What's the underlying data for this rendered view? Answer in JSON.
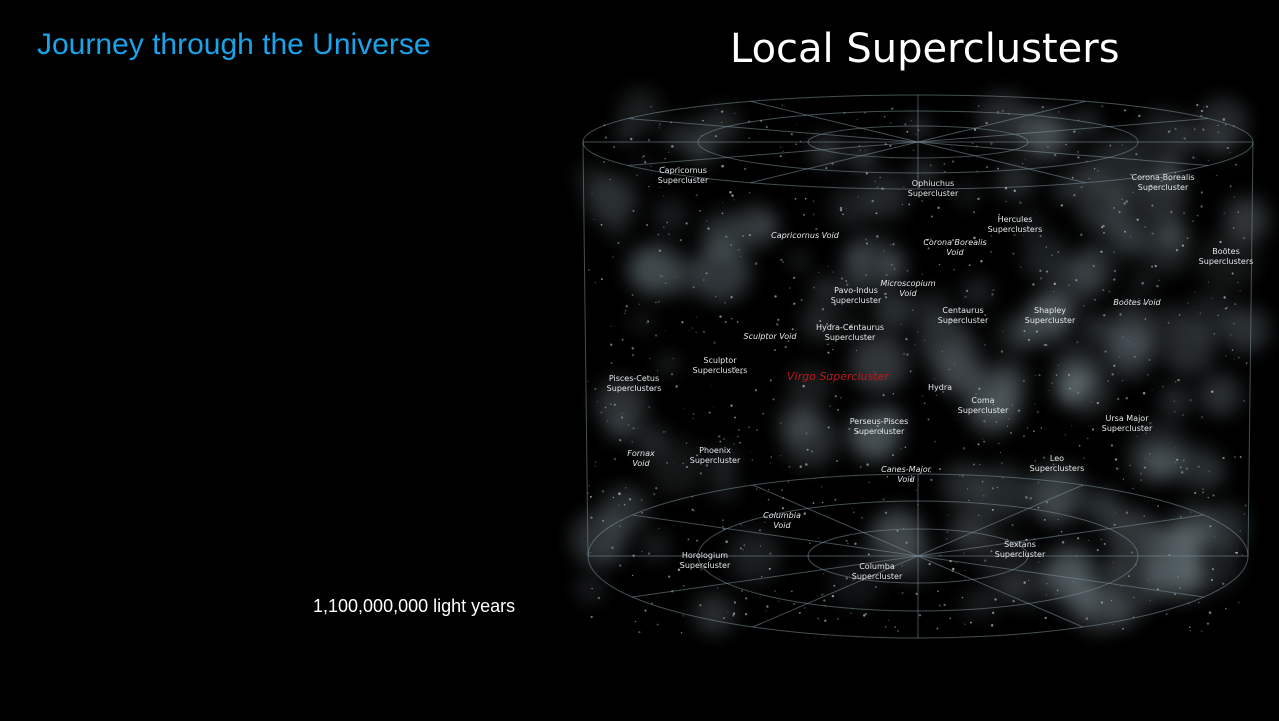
{
  "header": {
    "title": "Journey through the Universe"
  },
  "image": {
    "heading": "Local Superclusters",
    "labels": [
      [
        "Capricornus",
        "Supercluster"
      ],
      [
        "Ophiuchus",
        "Supercluster"
      ],
      [
        "Corona-Borealis",
        "Supercluster"
      ],
      [
        "Hercules",
        "Superclusters"
      ],
      [
        "Capricornus Void"
      ],
      [
        "Corona Borealis",
        "Void"
      ],
      [
        "Boötes",
        "Superclusters"
      ],
      [
        "Microscopium",
        "Void"
      ],
      [
        "Pavo-Indus",
        "Supercluster"
      ],
      [
        "Centaurus",
        "Supercluster"
      ],
      [
        "Shapley",
        "Supercluster"
      ],
      [
        "Boötes Void"
      ],
      [
        "Hydra-Centaurus",
        "Supercluster"
      ],
      [
        "Sculptor Void"
      ],
      [
        "Sculptor",
        "Superclusters"
      ],
      [
        "Virgo Supercluster"
      ],
      [
        "Pisces-Cetus",
        "Superclusters"
      ],
      [
        "Hydra"
      ],
      [
        "Coma",
        "Supercluster"
      ],
      [
        "Ursa Major",
        "Supercluster"
      ],
      [
        "Perseus-Pisces",
        "Supercluster"
      ],
      [
        "Phoenix",
        "Supercluster"
      ],
      [
        "Fornax",
        "Void"
      ],
      [
        "Leo",
        "Superclusters"
      ],
      [
        "Canes-Major",
        "Void"
      ],
      [
        "Columbia",
        "Void"
      ],
      [
        "Horologium",
        "Supercluster"
      ],
      [
        "Sextans",
        "Supercluster"
      ],
      [
        "Columba",
        "Supercluster"
      ]
    ]
  },
  "caption": "1,100,000,000 light years"
}
